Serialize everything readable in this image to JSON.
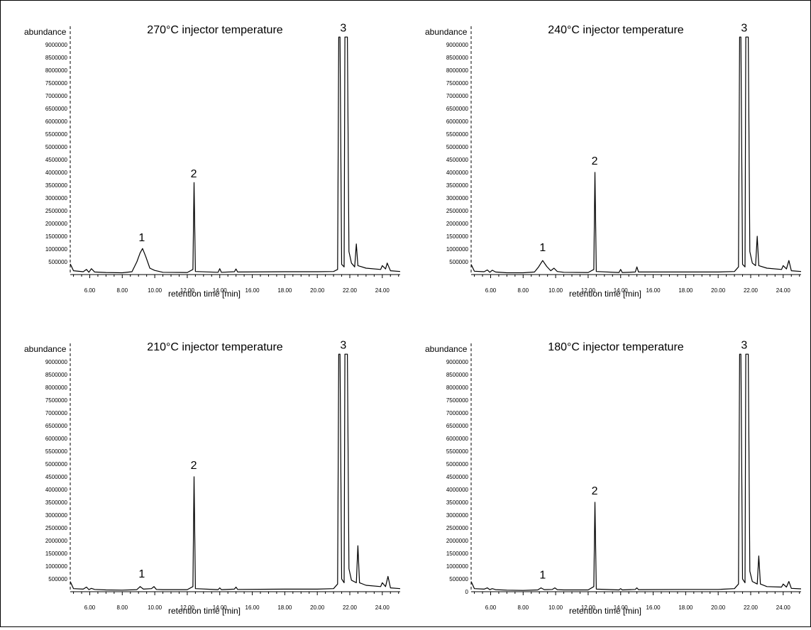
{
  "chart_data": [
    {
      "type": "line",
      "title": "270°C injector temperature",
      "ylabel": "abundance",
      "xlabel": "retention time [min]",
      "xlim": [
        4.8,
        25.1
      ],
      "ylim": [
        0,
        9300000
      ],
      "x_ticks": [
        "6.00",
        "8.00",
        "10.00",
        "12.00",
        "14.00",
        "16.00",
        "18.00",
        "20.00",
        "22.00",
        "24.00"
      ],
      "y_ticks": [
        "500000",
        "1000000",
        "1500000",
        "2000000",
        "2500000",
        "3000000",
        "3500000",
        "4000000",
        "4500000",
        "5000000",
        "5500000",
        "6000000",
        "6500000",
        "7000000",
        "7500000",
        "8000000",
        "8500000",
        "9000000"
      ],
      "peak_labels": [
        {
          "text": "1",
          "x": 9.2,
          "y": 1200000
        },
        {
          "text": "2",
          "x": 12.4,
          "y": 3700000
        },
        {
          "text": "3",
          "x": 21.6,
          "y": 9400000
        }
      ],
      "series": [
        {
          "points": [
            [
              4.8,
              420000
            ],
            [
              5.0,
              150000
            ],
            [
              5.6,
              110000
            ],
            [
              5.8,
              200000
            ],
            [
              5.95,
              90000
            ],
            [
              6.1,
              230000
            ],
            [
              6.3,
              100000
            ],
            [
              7.0,
              80000
            ],
            [
              8.0,
              70000
            ],
            [
              8.6,
              110000
            ],
            [
              8.9,
              500000
            ],
            [
              9.1,
              850000
            ],
            [
              9.25,
              1020000
            ],
            [
              9.45,
              700000
            ],
            [
              9.7,
              250000
            ],
            [
              10.0,
              160000
            ],
            [
              10.5,
              90000
            ],
            [
              12.0,
              80000
            ],
            [
              12.35,
              200000
            ],
            [
              12.42,
              3600000
            ],
            [
              12.5,
              120000
            ],
            [
              13.9,
              90000
            ],
            [
              14.0,
              230000
            ],
            [
              14.1,
              90000
            ],
            [
              14.9,
              110000
            ],
            [
              15.0,
              220000
            ],
            [
              15.1,
              100000
            ],
            [
              18.0,
              110000
            ],
            [
              20.0,
              110000
            ],
            [
              21.0,
              120000
            ],
            [
              21.25,
              200000
            ],
            [
              21.32,
              9300000
            ],
            [
              21.4,
              9300000
            ],
            [
              21.5,
              400000
            ],
            [
              21.65,
              300000
            ],
            [
              21.7,
              9300000
            ],
            [
              21.85,
              9300000
            ],
            [
              21.95,
              900000
            ],
            [
              22.1,
              450000
            ],
            [
              22.3,
              300000
            ],
            [
              22.4,
              1200000
            ],
            [
              22.5,
              350000
            ],
            [
              23.0,
              250000
            ],
            [
              23.9,
              200000
            ],
            [
              24.0,
              350000
            ],
            [
              24.2,
              220000
            ],
            [
              24.3,
              450000
            ],
            [
              24.5,
              150000
            ],
            [
              25.1,
              120000
            ]
          ]
        }
      ]
    },
    {
      "type": "line",
      "title": "240°C injector temperature",
      "ylabel": "abundance",
      "xlabel": "retention time [min]",
      "xlim": [
        4.8,
        25.1
      ],
      "ylim": [
        0,
        9300000
      ],
      "x_ticks": [
        "6.00",
        "8.00",
        "10.00",
        "12.00",
        "14.00",
        "16.00",
        "18.00",
        "20.00",
        "22.00",
        "24.00"
      ],
      "y_ticks": [
        "500000",
        "1000000",
        "1500000",
        "2000000",
        "2500000",
        "3000000",
        "3500000",
        "4000000",
        "4500000",
        "5000000",
        "5500000",
        "6000000",
        "6500000",
        "7000000",
        "7500000",
        "8000000",
        "8500000",
        "9000000"
      ],
      "peak_labels": [
        {
          "text": "1",
          "x": 9.2,
          "y": 800000
        },
        {
          "text": "2",
          "x": 12.4,
          "y": 4200000
        },
        {
          "text": "3",
          "x": 21.6,
          "y": 9400000
        }
      ],
      "series": [
        {
          "points": [
            [
              4.8,
              400000
            ],
            [
              5.0,
              130000
            ],
            [
              5.6,
              110000
            ],
            [
              5.8,
              180000
            ],
            [
              5.95,
              90000
            ],
            [
              6.1,
              170000
            ],
            [
              6.3,
              100000
            ],
            [
              7.0,
              70000
            ],
            [
              8.0,
              70000
            ],
            [
              8.7,
              100000
            ],
            [
              8.95,
              300000
            ],
            [
              9.2,
              550000
            ],
            [
              9.45,
              320000
            ],
            [
              9.7,
              150000
            ],
            [
              9.9,
              250000
            ],
            [
              10.1,
              120000
            ],
            [
              10.5,
              90000
            ],
            [
              12.0,
              80000
            ],
            [
              12.35,
              200000
            ],
            [
              12.42,
              4000000
            ],
            [
              12.5,
              120000
            ],
            [
              13.9,
              80000
            ],
            [
              14.0,
              200000
            ],
            [
              14.1,
              80000
            ],
            [
              14.9,
              100000
            ],
            [
              15.0,
              300000
            ],
            [
              15.1,
              100000
            ],
            [
              18.0,
              100000
            ],
            [
              20.0,
              100000
            ],
            [
              21.0,
              120000
            ],
            [
              21.25,
              300000
            ],
            [
              21.32,
              9300000
            ],
            [
              21.4,
              9300000
            ],
            [
              21.5,
              400000
            ],
            [
              21.65,
              300000
            ],
            [
              21.7,
              9300000
            ],
            [
              21.85,
              9300000
            ],
            [
              21.95,
              900000
            ],
            [
              22.1,
              450000
            ],
            [
              22.3,
              350000
            ],
            [
              22.4,
              1500000
            ],
            [
              22.5,
              350000
            ],
            [
              23.0,
              250000
            ],
            [
              23.9,
              200000
            ],
            [
              24.0,
              350000
            ],
            [
              24.2,
              220000
            ],
            [
              24.35,
              550000
            ],
            [
              24.5,
              150000
            ],
            [
              25.1,
              120000
            ]
          ]
        }
      ]
    },
    {
      "type": "line",
      "title": "210°C injector temperature",
      "ylabel": "abundance",
      "xlabel": "retention time [min]",
      "xlim": [
        4.8,
        25.1
      ],
      "ylim": [
        0,
        9300000
      ],
      "x_ticks": [
        "6.00",
        "8.00",
        "10.00",
        "12.00",
        "14.00",
        "16.00",
        "18.00",
        "20.00",
        "22.00",
        "24.00"
      ],
      "y_ticks": [
        "500000",
        "1000000",
        "1500000",
        "2000000",
        "2500000",
        "3000000",
        "3500000",
        "4000000",
        "4500000",
        "5000000",
        "5500000",
        "6000000",
        "6500000",
        "7000000",
        "7500000",
        "8000000",
        "8500000",
        "9000000"
      ],
      "peak_labels": [
        {
          "text": "1",
          "x": 9.2,
          "y": 450000
        },
        {
          "text": "2",
          "x": 12.4,
          "y": 4700000
        },
        {
          "text": "3",
          "x": 21.6,
          "y": 9400000
        }
      ],
      "series": [
        {
          "points": [
            [
              4.8,
              400000
            ],
            [
              5.0,
              120000
            ],
            [
              5.6,
              100000
            ],
            [
              5.8,
              180000
            ],
            [
              5.95,
              80000
            ],
            [
              6.1,
              130000
            ],
            [
              6.3,
              90000
            ],
            [
              7.0,
              70000
            ],
            [
              8.0,
              60000
            ],
            [
              8.9,
              80000
            ],
            [
              9.1,
              200000
            ],
            [
              9.3,
              100000
            ],
            [
              9.8,
              120000
            ],
            [
              9.95,
              200000
            ],
            [
              10.1,
              90000
            ],
            [
              10.5,
              80000
            ],
            [
              12.0,
              80000
            ],
            [
              12.35,
              200000
            ],
            [
              12.42,
              4500000
            ],
            [
              12.5,
              120000
            ],
            [
              13.9,
              80000
            ],
            [
              14.0,
              150000
            ],
            [
              14.1,
              80000
            ],
            [
              14.9,
              100000
            ],
            [
              15.0,
              180000
            ],
            [
              15.1,
              90000
            ],
            [
              18.0,
              100000
            ],
            [
              20.0,
              100000
            ],
            [
              21.0,
              120000
            ],
            [
              21.25,
              300000
            ],
            [
              21.32,
              9300000
            ],
            [
              21.4,
              9300000
            ],
            [
              21.5,
              500000
            ],
            [
              21.65,
              350000
            ],
            [
              21.7,
              9300000
            ],
            [
              21.85,
              9300000
            ],
            [
              21.95,
              900000
            ],
            [
              22.1,
              450000
            ],
            [
              22.4,
              350000
            ],
            [
              22.5,
              1800000
            ],
            [
              22.6,
              350000
            ],
            [
              23.0,
              250000
            ],
            [
              23.9,
              200000
            ],
            [
              24.0,
              350000
            ],
            [
              24.2,
              200000
            ],
            [
              24.35,
              600000
            ],
            [
              24.5,
              150000
            ],
            [
              25.1,
              120000
            ]
          ]
        }
      ]
    },
    {
      "type": "line",
      "title": "180°C injector temperature",
      "ylabel": "abundance",
      "xlabel": "retention time [min]",
      "xlim": [
        4.8,
        25.1
      ],
      "ylim": [
        0,
        9300000
      ],
      "x_ticks": [
        "6.00",
        "8.00",
        "10.00",
        "12.00",
        "14.00",
        "16.00",
        "18.00",
        "20.00",
        "22.00",
        "24.00"
      ],
      "y_ticks": [
        "0",
        "500000",
        "1000000",
        "1500000",
        "2000000",
        "2500000",
        "3000000",
        "3500000",
        "4000000",
        "4500000",
        "5000000",
        "5500000",
        "6000000",
        "6500000",
        "7000000",
        "7500000",
        "8000000",
        "8500000",
        "9000000"
      ],
      "peak_labels": [
        {
          "text": "1",
          "x": 9.2,
          "y": 400000
        },
        {
          "text": "2",
          "x": 12.4,
          "y": 3700000
        },
        {
          "text": "3",
          "x": 21.6,
          "y": 9400000
        }
      ],
      "series": [
        {
          "points": [
            [
              4.8,
              400000
            ],
            [
              5.0,
              120000
            ],
            [
              5.6,
              100000
            ],
            [
              5.8,
              150000
            ],
            [
              5.95,
              80000
            ],
            [
              6.1,
              120000
            ],
            [
              6.3,
              80000
            ],
            [
              7.0,
              60000
            ],
            [
              8.0,
              50000
            ],
            [
              8.9,
              70000
            ],
            [
              9.1,
              150000
            ],
            [
              9.3,
              80000
            ],
            [
              9.8,
              90000
            ],
            [
              9.95,
              150000
            ],
            [
              10.1,
              80000
            ],
            [
              10.5,
              70000
            ],
            [
              12.0,
              70000
            ],
            [
              12.35,
              200000
            ],
            [
              12.42,
              3500000
            ],
            [
              12.5,
              100000
            ],
            [
              13.9,
              70000
            ],
            [
              14.0,
              120000
            ],
            [
              14.1,
              70000
            ],
            [
              14.9,
              90000
            ],
            [
              15.0,
              150000
            ],
            [
              15.1,
              80000
            ],
            [
              18.0,
              90000
            ],
            [
              20.0,
              90000
            ],
            [
              21.0,
              120000
            ],
            [
              21.25,
              300000
            ],
            [
              21.32,
              9300000
            ],
            [
              21.4,
              9300000
            ],
            [
              21.5,
              500000
            ],
            [
              21.65,
              350000
            ],
            [
              21.7,
              9300000
            ],
            [
              21.85,
              9300000
            ],
            [
              21.95,
              800000
            ],
            [
              22.1,
              400000
            ],
            [
              22.4,
              300000
            ],
            [
              22.5,
              1400000
            ],
            [
              22.6,
              300000
            ],
            [
              23.0,
              200000
            ],
            [
              23.9,
              180000
            ],
            [
              24.0,
              300000
            ],
            [
              24.2,
              180000
            ],
            [
              24.35,
              400000
            ],
            [
              24.5,
              130000
            ],
            [
              25.1,
              110000
            ]
          ]
        }
      ]
    }
  ]
}
